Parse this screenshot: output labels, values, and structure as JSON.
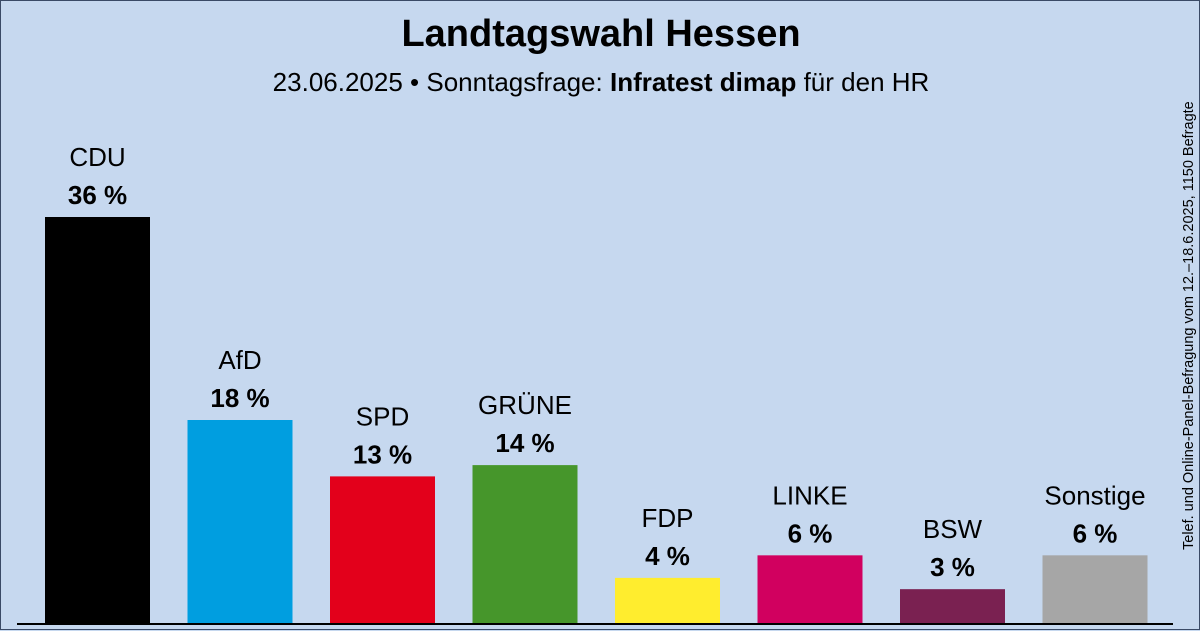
{
  "chart_data": {
    "type": "bar",
    "title": "Landtagswahl Hessen",
    "subtitle": {
      "date": "23.06.2025",
      "prefix": "• Sonntagsfrage:",
      "institute": "Infratest dimap",
      "suffix": "für den HR"
    },
    "categories": [
      "CDU",
      "AfD",
      "SPD",
      "GRÜNE",
      "FDP",
      "LINKE",
      "BSW",
      "Sonstige"
    ],
    "values": [
      36,
      18,
      13,
      14,
      4,
      6,
      3,
      6
    ],
    "value_labels": [
      "36 %",
      "18 %",
      "13 %",
      "14 %",
      "4 %",
      "6 %",
      "3 %",
      "6 %"
    ],
    "colors": [
      "#000000",
      "#009ee0",
      "#e3001b",
      "#46962b",
      "#ffed2e",
      "#d1005f",
      "#7a2151",
      "#a6a6a6"
    ],
    "ylim": [
      0,
      36
    ],
    "grid": false,
    "legend": "none",
    "note": "Telef. und Online-Panel-Befragung vom 12.–18.6.2025, 1150 Befragte"
  }
}
